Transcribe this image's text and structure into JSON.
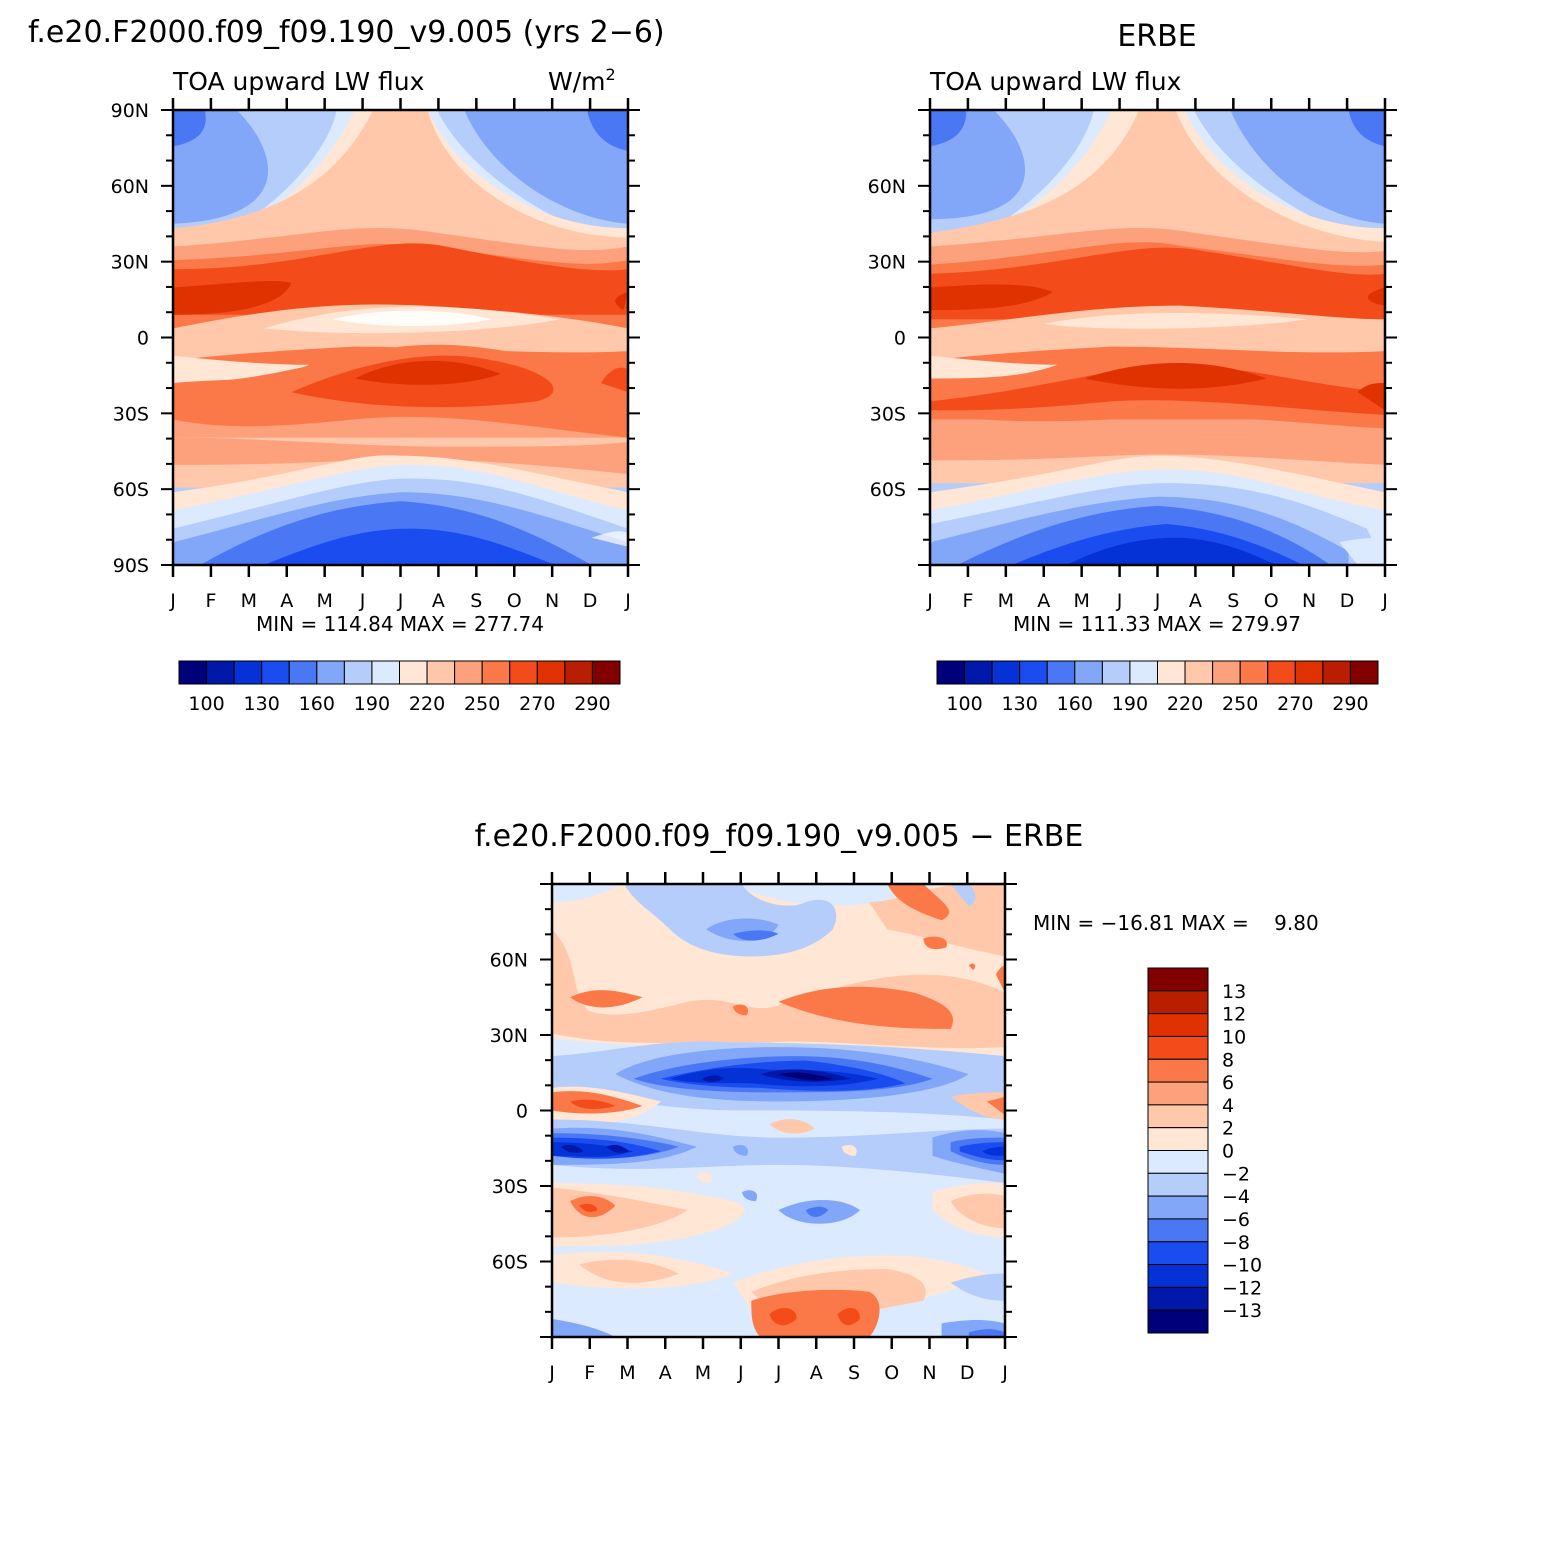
{
  "months": [
    "J",
    "F",
    "M",
    "A",
    "M",
    "J",
    "J",
    "A",
    "S",
    "O",
    "N",
    "D",
    "J"
  ],
  "chart_data": [
    {
      "type": "heatmap",
      "title": "f.e20.F2000.f09_f09.190_v9.005 (yrs 2−6)",
      "subtitle": "TOA upward LW flux",
      "units_base": "W/m",
      "units_sup": "2",
      "stats": "MIN = 114.84 MAX = 277.74",
      "x": [
        "J",
        "F",
        "M",
        "A",
        "M",
        "J",
        "J",
        "A",
        "S",
        "O",
        "N",
        "D",
        "J"
      ],
      "y_ticks": [
        "90N",
        "60N",
        "30N",
        "0",
        "30S",
        "60S",
        "90S"
      ],
      "y_range": [
        -90,
        90
      ],
      "colorbar_labels": [
        "100",
        "130",
        "160",
        "190",
        "220",
        "250",
        "270",
        "290"
      ],
      "colorbar_colors": [
        "#00007a",
        "#0018a9",
        "#0532d7",
        "#1b4cf0",
        "#4a78f4",
        "#82a6f8",
        "#b5cdfb",
        "#dceaff",
        "#ffe6d5",
        "#ffc8aa",
        "#fda07c",
        "#fb7848",
        "#f34c1a",
        "#e03100",
        "#b91e00",
        "#830000"
      ]
    },
    {
      "type": "heatmap",
      "title": "ERBE",
      "subtitle": "TOA upward LW flux",
      "stats": "MIN = 111.33 MAX = 279.97",
      "x": [
        "J",
        "F",
        "M",
        "A",
        "M",
        "J",
        "J",
        "A",
        "S",
        "O",
        "N",
        "D",
        "J"
      ],
      "y_ticks": [
        "60N",
        "30N",
        "0",
        "30S",
        "60S"
      ],
      "y_range": [
        -90,
        90
      ],
      "colorbar_labels": [
        "100",
        "130",
        "160",
        "190",
        "220",
        "250",
        "270",
        "290"
      ],
      "colorbar_colors": [
        "#00007a",
        "#0018a9",
        "#0532d7",
        "#1b4cf0",
        "#4a78f4",
        "#82a6f8",
        "#b5cdfb",
        "#dceaff",
        "#ffe6d5",
        "#ffc8aa",
        "#fda07c",
        "#fb7848",
        "#f34c1a",
        "#e03100",
        "#b91e00",
        "#830000"
      ]
    },
    {
      "type": "heatmap",
      "title": "f.e20.F2000.f09_f09.190_v9.005 − ERBE",
      "stats": "MIN = −16.81 MAX =    9.80",
      "x": [
        "J",
        "F",
        "M",
        "A",
        "M",
        "J",
        "J",
        "A",
        "S",
        "O",
        "N",
        "D",
        "J"
      ],
      "y_ticks": [
        "60N",
        "30N",
        "0",
        "30S",
        "60S"
      ],
      "y_range": [
        -90,
        90
      ],
      "colorbar_labels": [
        "13",
        "12",
        "10",
        "8",
        "6",
        "4",
        "2",
        "0",
        "−2",
        "−4",
        "−6",
        "−8",
        "−10",
        "−12",
        "−13"
      ],
      "colorbar_colors": [
        "#830000",
        "#b91e00",
        "#e03100",
        "#f34c1a",
        "#fb7848",
        "#fda07c",
        "#ffc8aa",
        "#ffe6d5",
        "#dceaff",
        "#b5cdfb",
        "#82a6f8",
        "#4a78f4",
        "#1b4cf0",
        "#0532d7",
        "#0018a9",
        "#00007a"
      ]
    }
  ]
}
